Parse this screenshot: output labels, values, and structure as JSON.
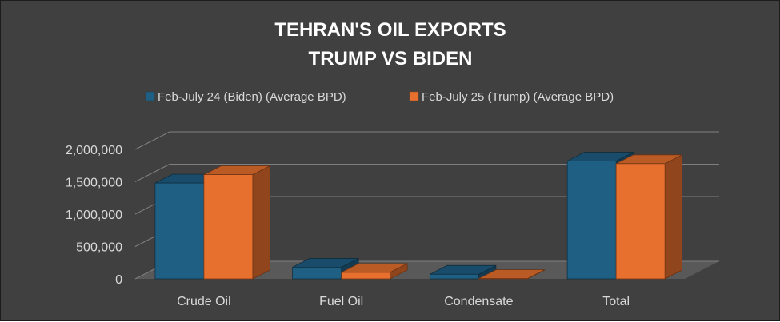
{
  "chart_data": {
    "type": "bar",
    "title": "TEHRAN'S OIL EXPORTS",
    "subtitle": "TRUMP VS BIDEN",
    "categories": [
      "Crude Oil",
      "Fuel Oil",
      "Condensate",
      "Total"
    ],
    "series": [
      {
        "name": "Feb-July 24 (Biden) (Average BPD)",
        "color": "#1f5f84",
        "values": [
          1480000,
          180000,
          70000,
          1820000
        ]
      },
      {
        "name": "Feb-July 25 (Trump) (Average BPD)",
        "color": "#e8702e",
        "values": [
          1610000,
          100000,
          5000,
          1780000
        ]
      }
    ],
    "yticks": [
      "0",
      "500,000",
      "1,000,000",
      "1,500,000",
      "2,000,000"
    ],
    "ylim": [
      0,
      2000000
    ],
    "grid": true,
    "legend_position": "top",
    "three_d": true,
    "background": "#404040"
  }
}
